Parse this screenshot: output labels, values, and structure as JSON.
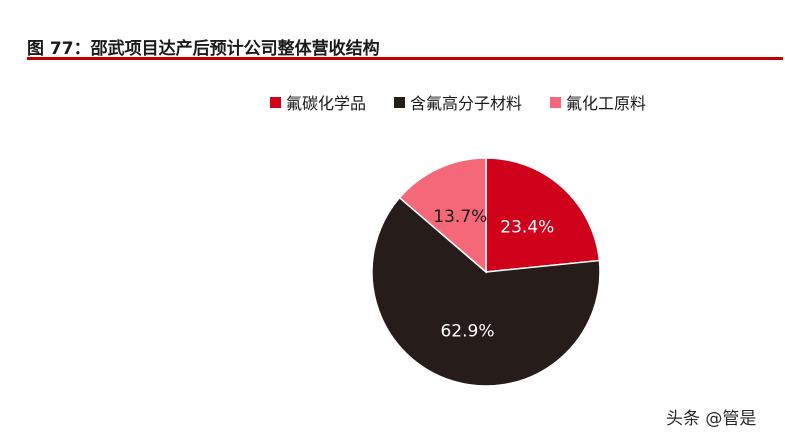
{
  "figure": {
    "title": "图 77：邵武项目达产后预计公司整体营收结构"
  },
  "watermark": "头条 @管是",
  "chart_data": {
    "type": "pie",
    "start_angle_deg": 0,
    "direction": "clockwise",
    "legend_position": "top",
    "slices": [
      {
        "label": "氟碳化学品",
        "value": 23.4,
        "value_label": "23.4%",
        "color": "#d0021b",
        "text_color": "#ffffff"
      },
      {
        "label": "含氟高分子材料",
        "value": 62.9,
        "value_label": "62.9%",
        "color": "#261c1a",
        "text_color": "#ffffff"
      },
      {
        "label": "氟化工原料",
        "value": 13.7,
        "value_label": "13.7%",
        "color": "#f5687a",
        "text_color": "#1a1a1a"
      }
    ]
  }
}
